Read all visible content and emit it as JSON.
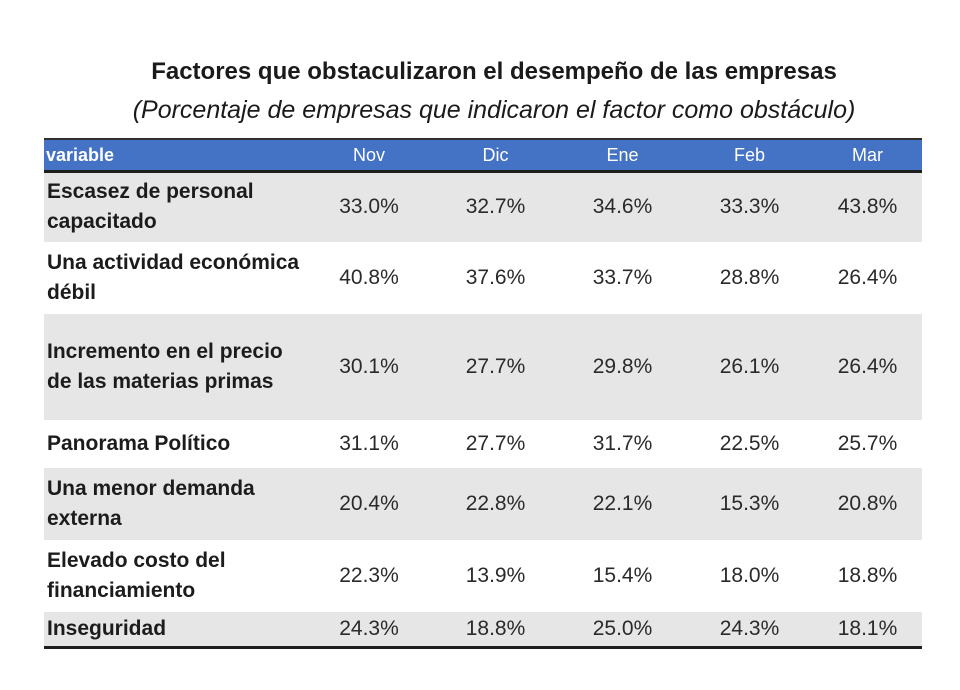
{
  "title": "Factores que obstaculizaron el desempeño de las empresas",
  "subtitle": "(Porcentaje de empresas que indicaron el factor como obstáculo)",
  "table": {
    "header_color": "#4472c4",
    "columns": [
      "variable",
      "Nov",
      "Dic",
      "Ene",
      "Feb",
      "Mar"
    ],
    "rows": [
      {
        "label": "Escasez de personal capacitado",
        "values": [
          "33.0%",
          "32.7%",
          "34.6%",
          "33.3%",
          "43.8%"
        ]
      },
      {
        "label": "Una actividad económica débil",
        "values": [
          "40.8%",
          "37.6%",
          "33.7%",
          "28.8%",
          "26.4%"
        ]
      },
      {
        "label": "Incremento en el precio de las materias primas",
        "values": [
          "30.1%",
          "27.7%",
          "29.8%",
          "26.1%",
          "26.4%"
        ]
      },
      {
        "label": "Panorama Político",
        "values": [
          "31.1%",
          "27.7%",
          "31.7%",
          "22.5%",
          "25.7%"
        ]
      },
      {
        "label": "Una menor demanda externa",
        "values": [
          "20.4%",
          "22.8%",
          "22.1%",
          "15.3%",
          "20.8%"
        ]
      },
      {
        "label": "Elevado costo del financiamiento",
        "values": [
          "22.3%",
          "13.9%",
          "15.4%",
          "18.0%",
          "18.8%"
        ]
      },
      {
        "label": "Inseguridad",
        "values": [
          "24.3%",
          "18.8%",
          "25.0%",
          "24.3%",
          "18.1%"
        ]
      }
    ]
  }
}
